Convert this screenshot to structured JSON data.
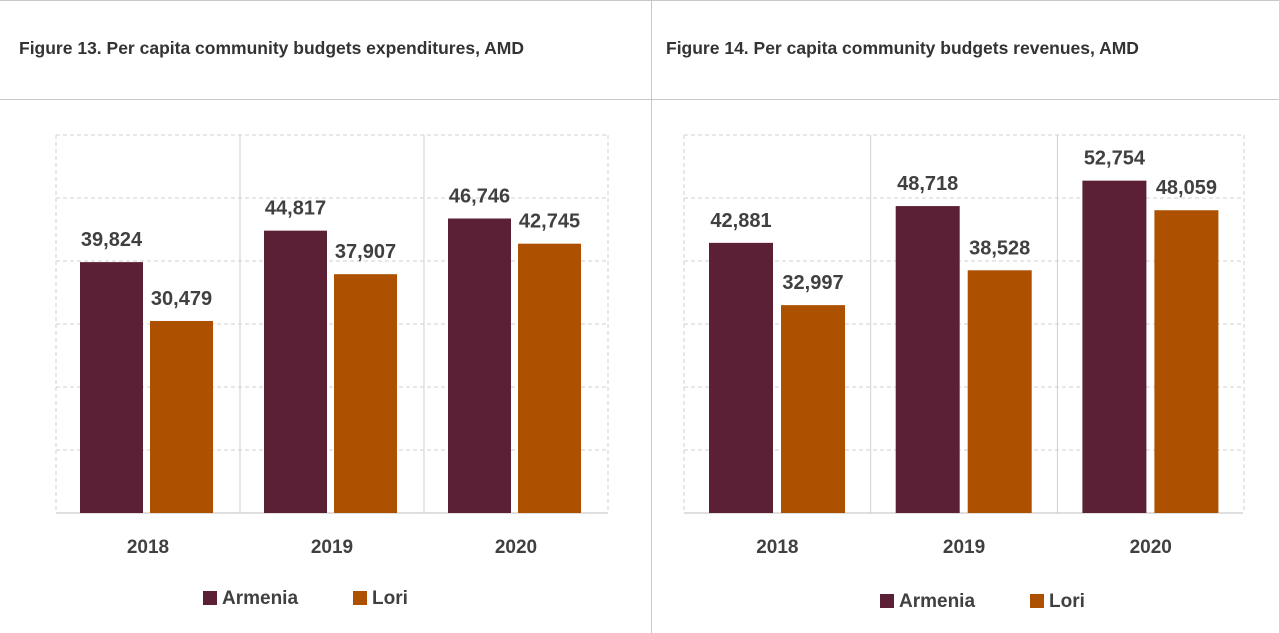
{
  "figures": [
    {
      "title": "Figure 13. Per capita community budgets expenditures, AMD"
    },
    {
      "title": "Figure 14. Per capita community budgets revenues, AMD"
    }
  ],
  "colors": {
    "armenia": "#5b2035",
    "lori": "#ad5100",
    "grid": "#d0d0d0",
    "text": "#404040"
  },
  "chart_data": [
    {
      "type": "bar",
      "title": "Figure 13. Per capita community budgets expenditures, AMD",
      "categories": [
        "2018",
        "2019",
        "2020"
      ],
      "series": [
        {
          "name": "Armenia",
          "values": [
            39824,
            44817,
            46746
          ],
          "labels": [
            "39,824",
            "44,817",
            "46,746"
          ]
        },
        {
          "name": "Lori",
          "values": [
            30479,
            37907,
            42745
          ],
          "labels": [
            "30,479",
            "37,907",
            "42,745"
          ]
        }
      ],
      "ylim": [
        0,
        60000
      ],
      "grid": true,
      "legend": "bottom"
    },
    {
      "type": "bar",
      "title": "Figure 14. Per capita community budgets revenues, AMD",
      "categories": [
        "2018",
        "2019",
        "2020"
      ],
      "series": [
        {
          "name": "Armenia",
          "values": [
            42881,
            48718,
            52754
          ],
          "labels": [
            "42,881",
            "48,718",
            "52,754"
          ]
        },
        {
          "name": "Lori",
          "values": [
            32997,
            38528,
            48059
          ],
          "labels": [
            "32,997",
            "38,528",
            "48,059"
          ]
        }
      ],
      "ylim": [
        0,
        60000
      ],
      "grid": true,
      "legend": "bottom"
    }
  ]
}
